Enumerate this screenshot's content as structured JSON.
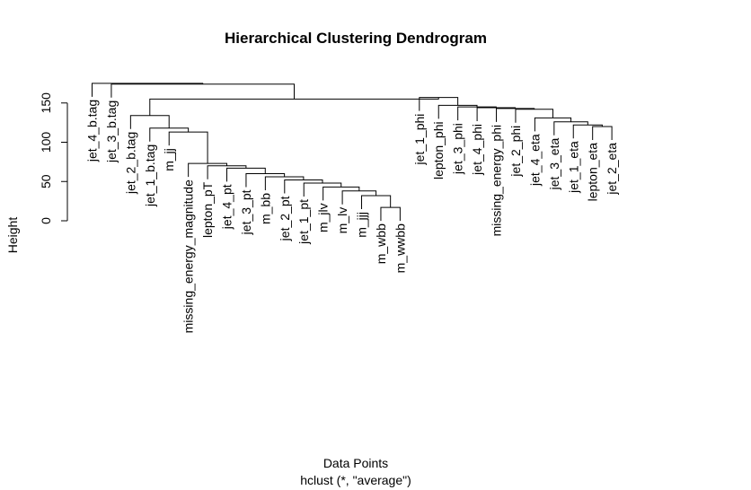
{
  "chart_data": {
    "type": "dendrogram",
    "title": "Hierarchical Clustering Dendrogram",
    "xlabel": "Data Points",
    "sub": "hclust (*, \"average\")",
    "ylabel": "Height",
    "ylim": [
      0,
      170
    ],
    "yticks": [
      0,
      50,
      100,
      150
    ],
    "labels": [
      "jet_4_b.tag",
      "jet_3_b.tag",
      "jet_2_b.tag",
      "jet_1_b.tag",
      "m_jj",
      "missing_energy_magnitude",
      "lepton_pT",
      "jet_4_pt",
      "jet_3_pt",
      "m_bb",
      "jet_2_pt",
      "jet_1_pt",
      "m_jlv",
      "m_lv",
      "m_jjj",
      "m_wbb",
      "m_wwbb",
      "jet_1_phi",
      "lepton_phi",
      "jet_3_phi",
      "jet_4_phi",
      "missing_energy_phi",
      "jet_2_phi",
      "jet_4_eta",
      "jet_3_eta",
      "jet_1_eta",
      "lepton_eta",
      "jet_2_eta"
    ],
    "merges": [
      [
        -16,
        -17,
        17
      ],
      [
        -15,
        1,
        32
      ],
      [
        -14,
        2,
        38
      ],
      [
        -13,
        3,
        43
      ],
      [
        -12,
        4,
        48
      ],
      [
        -11,
        5,
        52
      ],
      [
        -10,
        6,
        56
      ],
      [
        -9,
        7,
        60
      ],
      [
        -8,
        8,
        67
      ],
      [
        -7,
        9,
        70
      ],
      [
        -6,
        10,
        73
      ],
      [
        -5,
        11,
        113
      ],
      [
        -4,
        12,
        118
      ],
      [
        -3,
        13,
        134
      ],
      [
        -27,
        -28,
        120
      ],
      [
        -26,
        15,
        122
      ],
      [
        -25,
        16,
        126
      ],
      [
        -24,
        17,
        131
      ],
      [
        -23,
        18,
        142
      ],
      [
        -22,
        19,
        143
      ],
      [
        -21,
        20,
        144
      ],
      [
        -20,
        21,
        145
      ],
      [
        -19,
        22,
        147
      ],
      [
        -18,
        23,
        157
      ],
      [
        14,
        24,
        155
      ],
      [
        -2,
        25,
        174
      ],
      [
        -1,
        26,
        175
      ]
    ]
  }
}
